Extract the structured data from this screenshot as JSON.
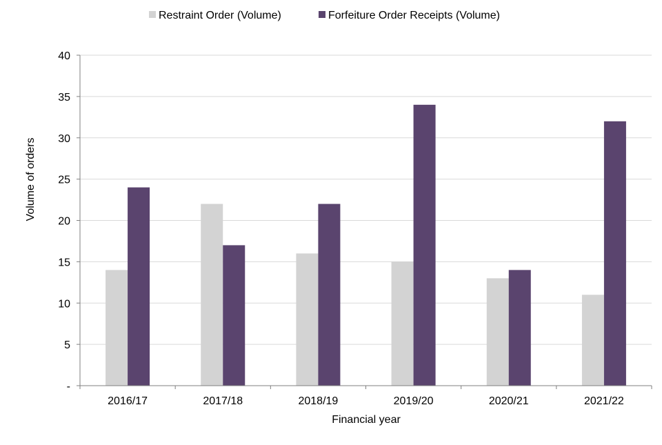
{
  "chart_data": {
    "type": "bar",
    "categories": [
      "2016/17",
      "2017/18",
      "2018/19",
      "2019/20",
      "2020/21",
      "2021/22"
    ],
    "series": [
      {
        "name": "Restraint Order (Volume)",
        "values": [
          14,
          22,
          16,
          15,
          13,
          11
        ],
        "color": "#d3d3d3"
      },
      {
        "name": "Forfeiture Order Receipts (Volume)",
        "values": [
          24,
          17,
          22,
          34,
          14,
          32
        ],
        "color": "#5a446e"
      }
    ],
    "title": "",
    "xlabel": "Financial year",
    "ylabel": "Volume of orders",
    "ylim": [
      0,
      40
    ],
    "yticks": [
      0,
      5,
      10,
      15,
      20,
      25,
      30,
      35,
      40
    ],
    "ytick_labels": [
      "-",
      "5",
      "10",
      "15",
      "20",
      "25",
      "30",
      "35",
      "40"
    ],
    "grid": true,
    "legend_position": "top"
  }
}
